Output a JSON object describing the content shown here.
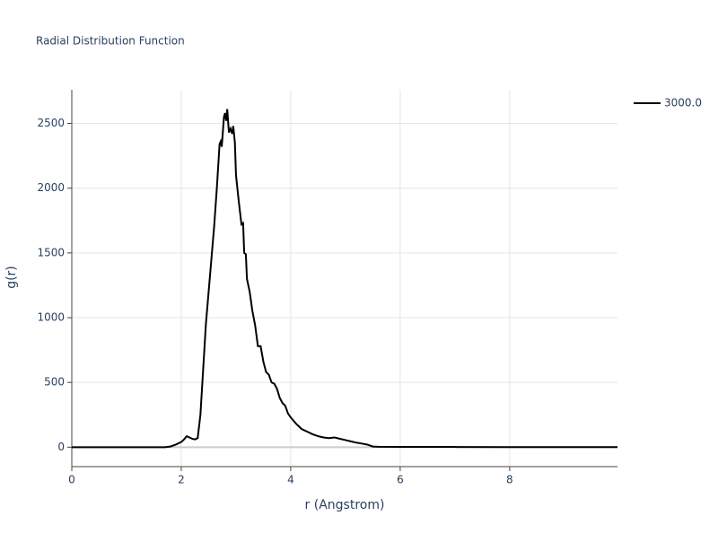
{
  "chart_data": {
    "type": "line",
    "title": "Radial Distribution Function",
    "x_label": "r (Angstrom)",
    "y_label": "g(r)",
    "x": [
      0,
      1.7,
      1.8,
      1.9,
      2.0,
      2.05,
      2.1,
      2.15,
      2.2,
      2.25,
      2.3,
      2.35,
      2.4,
      2.45,
      2.5,
      2.55,
      2.6,
      2.65,
      2.7,
      2.72,
      2.74,
      2.78,
      2.8,
      2.82,
      2.84,
      2.87,
      2.9,
      2.93,
      2.95,
      2.98,
      3.0,
      3.05,
      3.1,
      3.13,
      3.15,
      3.18,
      3.2,
      3.25,
      3.3,
      3.35,
      3.4,
      3.45,
      3.5,
      3.55,
      3.6,
      3.65,
      3.7,
      3.75,
      3.8,
      3.85,
      3.9,
      3.95,
      4.0,
      4.1,
      4.2,
      4.3,
      4.4,
      4.5,
      4.6,
      4.7,
      4.8,
      4.9,
      5.0,
      5.1,
      5.2,
      5.3,
      5.4,
      5.5,
      5.6,
      6,
      7,
      8,
      9,
      9.97
    ],
    "series": [
      {
        "name": "3000.0",
        "color": "#000000",
        "values": [
          0,
          0,
          5,
          20,
          40,
          60,
          85,
          75,
          65,
          60,
          70,
          250,
          600,
          950,
          1200,
          1450,
          1700,
          2000,
          2340,
          2360,
          2320,
          2550,
          2580,
          2520,
          2610,
          2430,
          2460,
          2420,
          2480,
          2350,
          2100,
          1900,
          1720,
          1730,
          1500,
          1490,
          1300,
          1200,
          1050,
          940,
          780,
          780,
          660,
          580,
          560,
          500,
          490,
          450,
          380,
          340,
          320,
          260,
          230,
          180,
          140,
          120,
          100,
          85,
          75,
          70,
          75,
          65,
          55,
          45,
          35,
          28,
          20,
          5,
          3,
          2,
          2,
          1,
          1,
          1
        ]
      }
    ],
    "xlim": [
      0,
      9.97
    ],
    "ylim": [
      -150,
      2760
    ],
    "xticks": [
      0,
      2,
      4,
      6,
      8
    ],
    "yticks": [
      0,
      500,
      1000,
      1500,
      2000,
      2500
    ],
    "grid": true
  }
}
